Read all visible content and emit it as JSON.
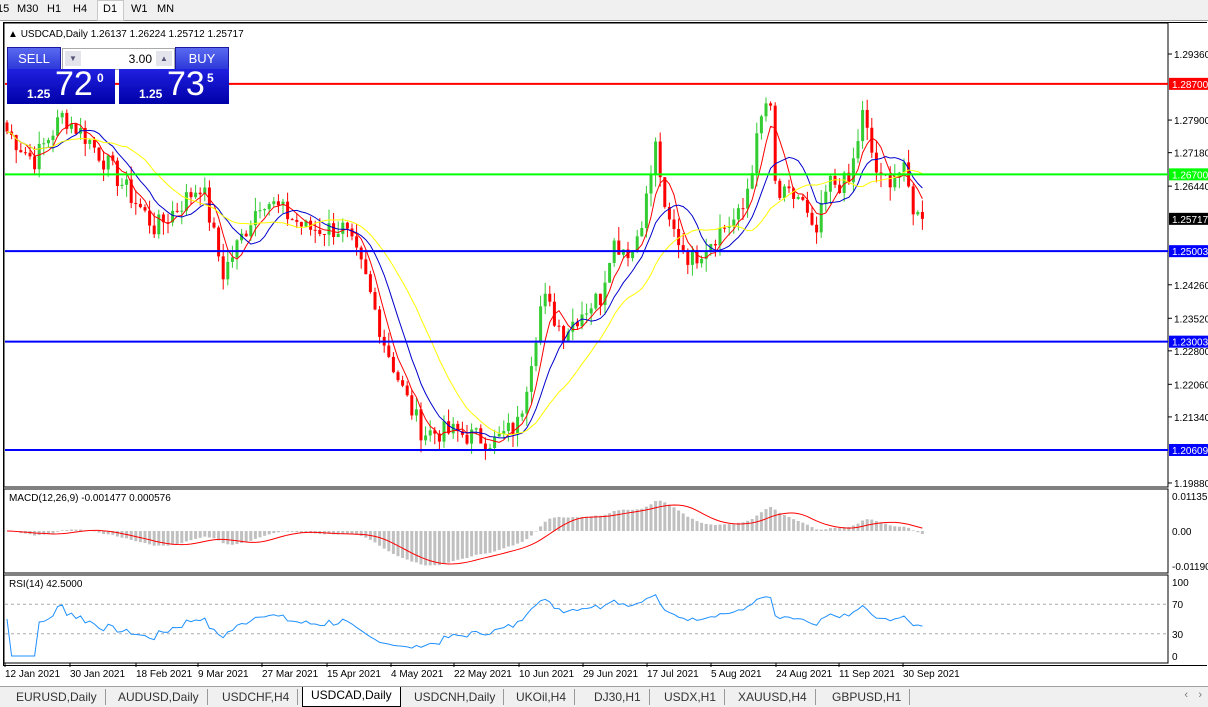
{
  "toolbar": {
    "timeframes": [
      "15",
      "M30",
      "H1",
      "H4",
      "D1",
      "W1",
      "MN"
    ],
    "active": "D1"
  },
  "chart_header": {
    "symbol": "USDCAD,Daily",
    "ohlc": "1.26137 1.26224 1.25712 1.25717"
  },
  "trade_panel": {
    "sell_label": "SELL",
    "buy_label": "BUY",
    "lot": "3.00",
    "sell_prefix": "1.25",
    "sell_big": "72",
    "sell_sup": "0",
    "buy_prefix": "1.25",
    "buy_big": "73",
    "buy_sup": "5"
  },
  "price_axis": {
    "ticks": [
      "1.29360",
      "1.27900",
      "1.27180",
      "1.26440",
      "1.24260",
      "1.23520",
      "1.22800",
      "1.22060",
      "1.21340",
      "1.19880"
    ],
    "current": "1.25717"
  },
  "hlines": [
    {
      "price": "1.28700",
      "color": "#ff0000"
    },
    {
      "price": "1.26700",
      "color": "#00ff00"
    },
    {
      "price": "1.25003",
      "color": "#0000ff"
    },
    {
      "price": "1.23003",
      "color": "#0000ff"
    },
    {
      "price": "1.20609",
      "color": "#0000ff"
    }
  ],
  "colors": {
    "bull": "#33cc33",
    "bear": "#ff0000",
    "ma_fast": "#ff0000",
    "ma_mid": "#0000cc",
    "ma_slow": "#ffff00",
    "macd_hist": "#c0c0c0",
    "macd_signal": "#ff0000",
    "rsi": "#1e90ff"
  },
  "chart_data": {
    "type": "candlestick",
    "title": "USDCAD,Daily",
    "approx_closes": [
      [
        "2021-01-12",
        1.277
      ],
      [
        "2021-01-20",
        1.27
      ],
      [
        "2021-01-28",
        1.28
      ],
      [
        "2021-02-04",
        1.275
      ],
      [
        "2021-02-12",
        1.267
      ],
      [
        "2021-02-24",
        1.255
      ],
      [
        "2021-03-10",
        1.265
      ],
      [
        "2021-03-16",
        1.245
      ],
      [
        "2021-03-27",
        1.262
      ],
      [
        "2021-04-09",
        1.255
      ],
      [
        "2021-04-20",
        1.255
      ],
      [
        "2021-04-26",
        1.245
      ],
      [
        "2021-05-02",
        1.23
      ],
      [
        "2021-05-08",
        1.218
      ],
      [
        "2021-05-13",
        1.21
      ],
      [
        "2021-05-22",
        1.21
      ],
      [
        "2021-06-03",
        1.208
      ],
      [
        "2021-06-10",
        1.212
      ],
      [
        "2021-06-17",
        1.24
      ],
      [
        "2021-06-23",
        1.232
      ],
      [
        "2021-06-29",
        1.237
      ],
      [
        "2021-07-04",
        1.24
      ],
      [
        "2021-07-07",
        1.252
      ],
      [
        "2021-07-13",
        1.25
      ],
      [
        "2021-07-17",
        1.262
      ],
      [
        "2021-07-20",
        1.275
      ],
      [
        "2021-07-22",
        1.258
      ],
      [
        "2021-07-30",
        1.248
      ],
      [
        "2021-08-08",
        1.255
      ],
      [
        "2021-08-14",
        1.258
      ],
      [
        "2021-08-20",
        1.28
      ],
      [
        "2021-08-22",
        1.285
      ],
      [
        "2021-08-24",
        1.262
      ],
      [
        "2021-08-31",
        1.262
      ],
      [
        "2021-09-04",
        1.252
      ],
      [
        "2021-09-08",
        1.265
      ],
      [
        "2021-09-14",
        1.265
      ],
      [
        "2021-09-18",
        1.28
      ],
      [
        "2021-09-23",
        1.265
      ],
      [
        "2021-09-30",
        1.268
      ],
      [
        "2021-10-04",
        1.258
      ],
      [
        "2021-10-07",
        1.25717
      ]
    ],
    "ylim": [
      1.1988,
      1.2936
    ]
  },
  "macd": {
    "label": "MACD(12,26,9) -0.001477 0.000576",
    "ticks": [
      "0.01135",
      "0.00",
      "-0.01190"
    ]
  },
  "rsi": {
    "label": "RSI(14) 42.5000",
    "ticks": [
      "100",
      "70",
      "30",
      "0"
    ]
  },
  "date_axis": [
    "12 Jan 2021",
    "30 Jan 2021",
    "18 Feb 2021",
    "9 Mar 2021",
    "27 Mar 2021",
    "15 Apr 2021",
    "4 May 2021",
    "22 May 2021",
    "10 Jun 2021",
    "29 Jun 2021",
    "17 Jul 2021",
    "5 Aug 2021",
    "24 Aug 2021",
    "11 Sep 2021",
    "30 Sep 2021"
  ],
  "tabs": [
    "EURUSD,Daily",
    "AUDUSD,Daily",
    "USDCHF,H4",
    "USDCAD,Daily",
    "USDCNH,Daily",
    "UKOil,H4",
    "DJ30,H1",
    "USDX,H1",
    "XAUUSD,H4",
    "GBPUSD,H1"
  ],
  "active_tab": "USDCAD,Daily"
}
